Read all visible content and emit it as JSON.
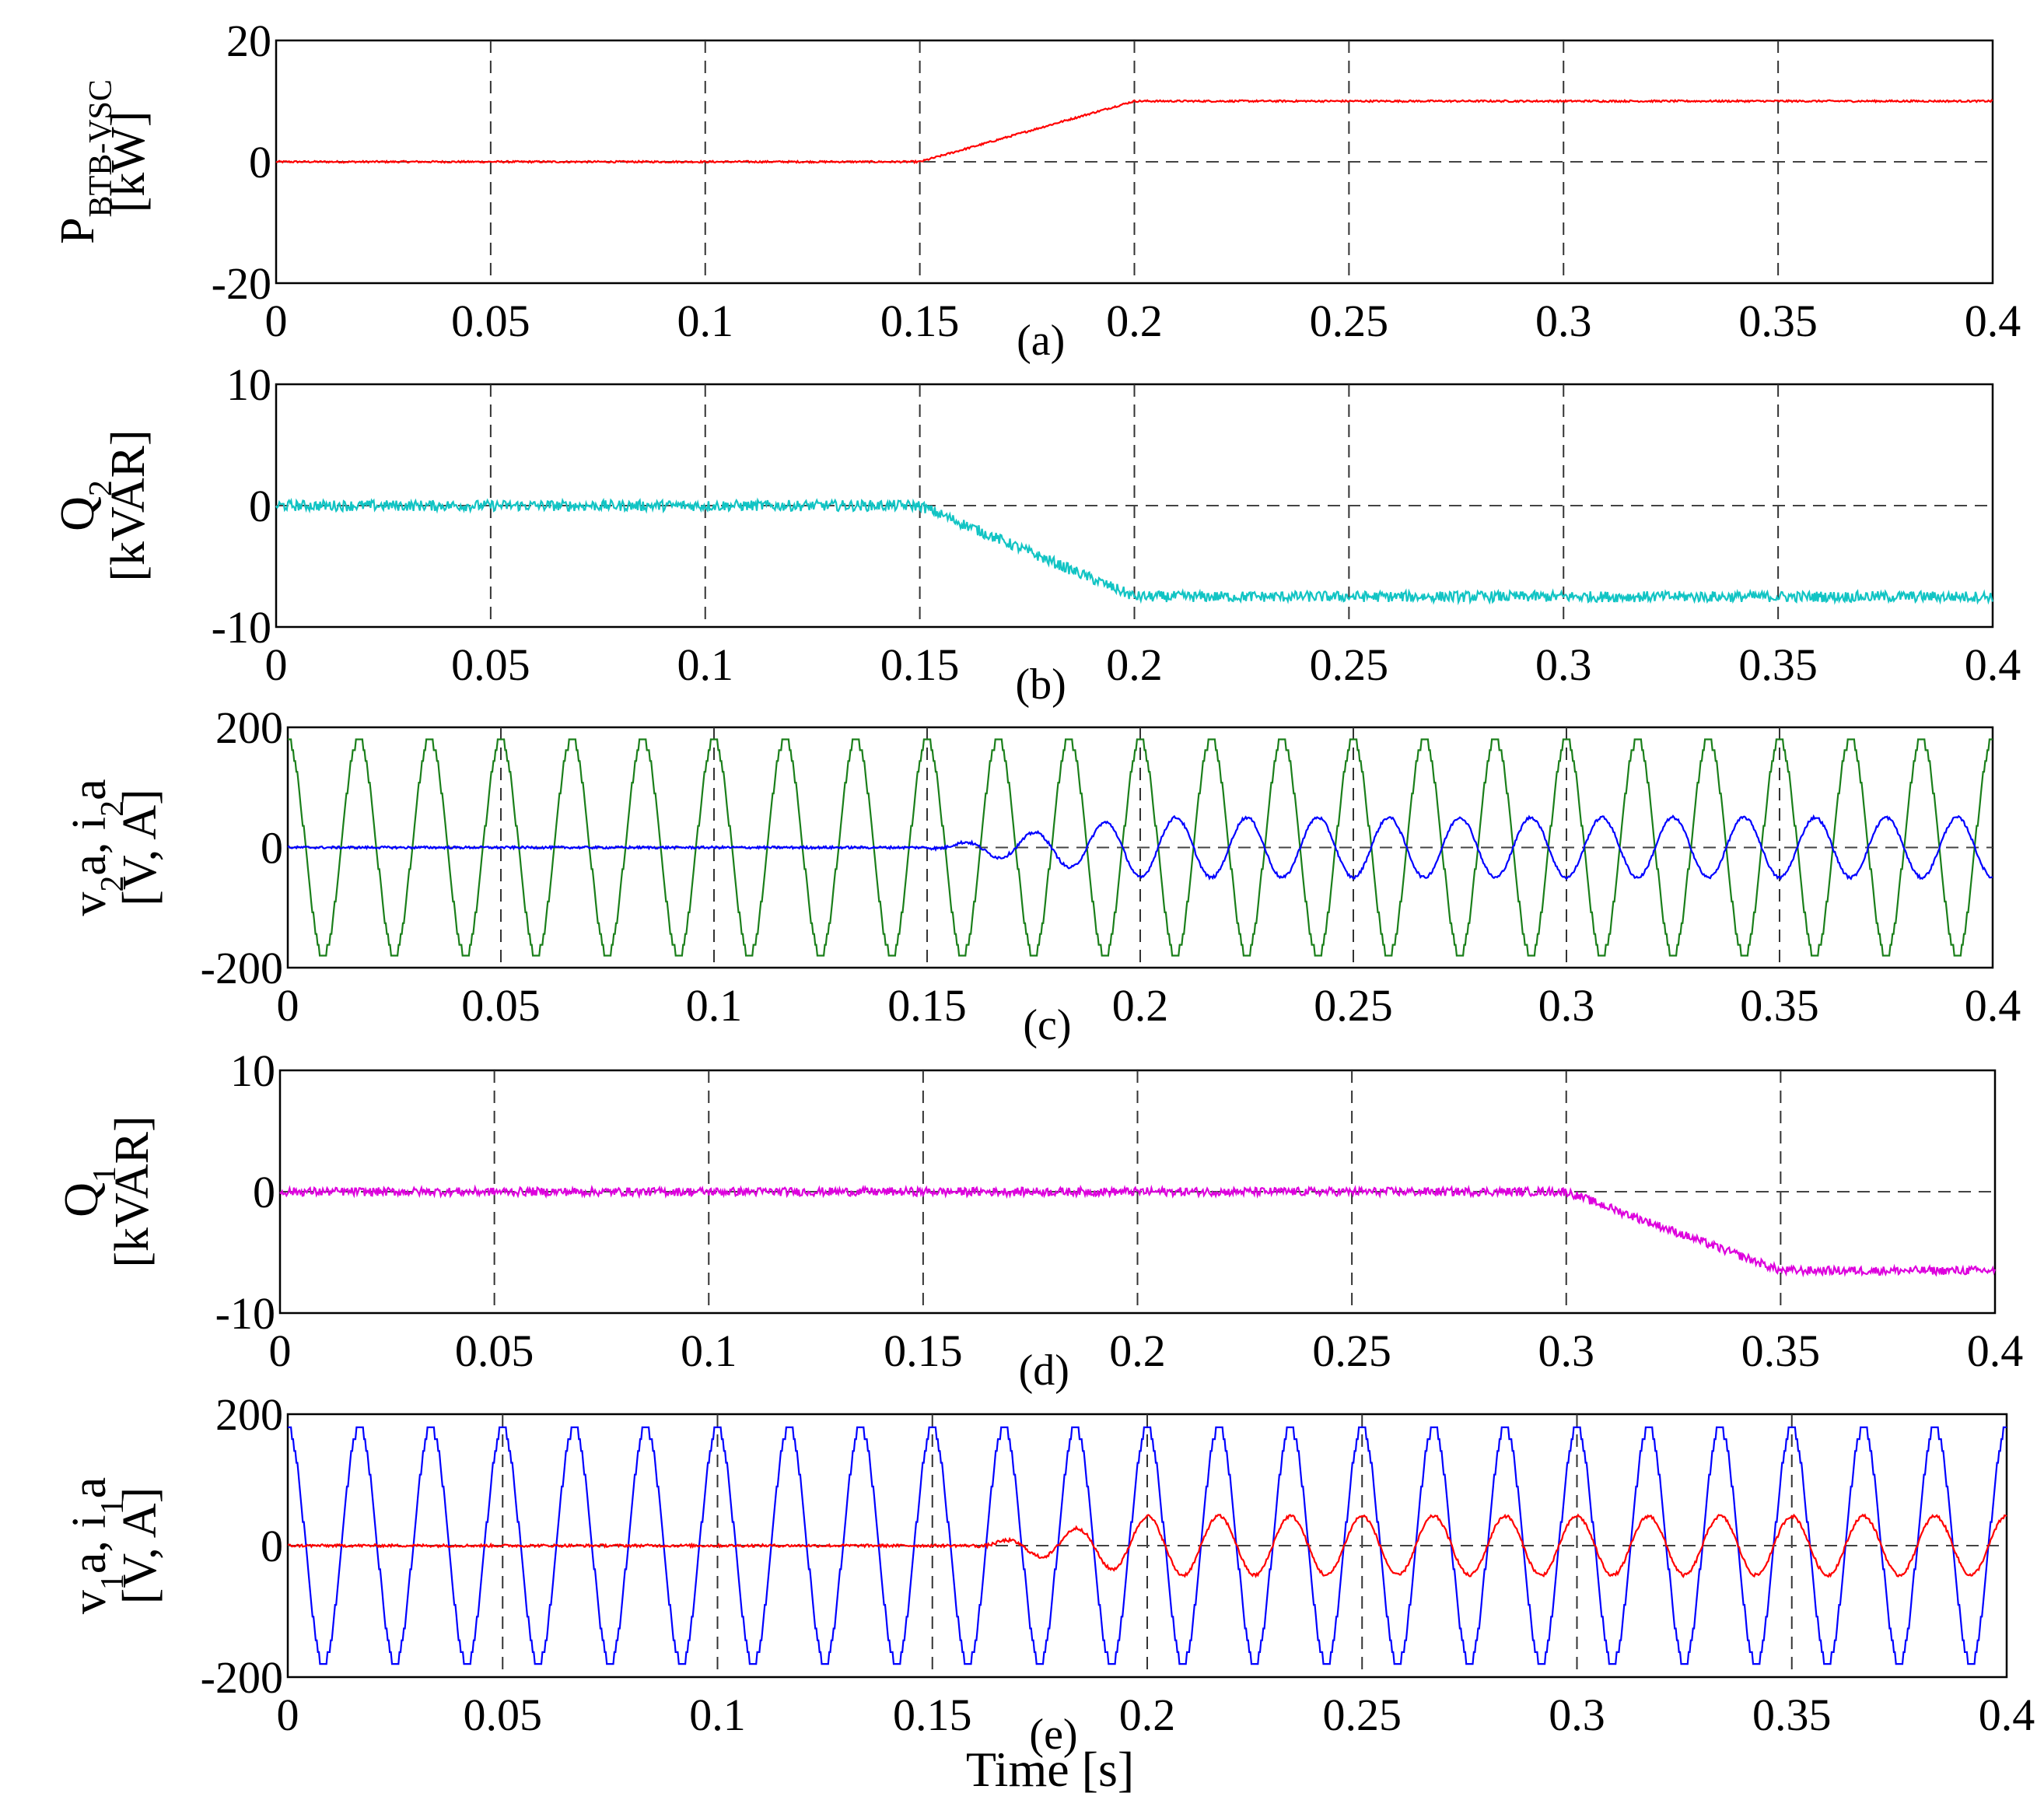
{
  "figure": {
    "xlabel": "Time [s]"
  },
  "colors": {
    "red": "#ff0000",
    "cyan": "#12c4c4",
    "green": "#1a7f1a",
    "blue": "#0000ff",
    "magenta": "#dd00dd",
    "grid": "#555555"
  },
  "chart_data": [
    {
      "id": "a",
      "type": "line",
      "panel_label": "(a)",
      "ylabel_main": "P",
      "ylabel_sub": "BTB-VSC",
      "ylabel_unit": "[kW]",
      "xlim": [
        0,
        0.4
      ],
      "ylim": [
        -20,
        20
      ],
      "xticks": [
        "0",
        "0.05",
        "0.1",
        "0.15",
        "0.2",
        "0.25",
        "0.3",
        "0.35",
        "0.4"
      ],
      "yticks": [
        "20",
        "0",
        "-20"
      ],
      "grid": true,
      "series": [
        {
          "name": "P_BTB-VSC",
          "kind": "ramp",
          "color": "red",
          "x": [
            0,
            0.15,
            0.2,
            0.4
          ],
          "y": [
            0,
            0,
            10,
            10
          ],
          "noise": 0.15
        }
      ]
    },
    {
      "id": "b",
      "type": "line",
      "panel_label": "(b)",
      "ylabel_main": "Q",
      "ylabel_sub": "2",
      "ylabel_unit": "[kVAR]",
      "xlim": [
        0,
        0.4
      ],
      "ylim": [
        -10,
        10
      ],
      "xticks": [
        "0",
        "0.05",
        "0.1",
        "0.15",
        "0.2",
        "0.25",
        "0.3",
        "0.35",
        "0.4"
      ],
      "yticks": [
        "10",
        "0",
        "-10"
      ],
      "grid": true,
      "series": [
        {
          "name": "Q2",
          "kind": "ramp",
          "color": "cyan",
          "x": [
            0,
            0.15,
            0.2,
            0.4
          ],
          "y": [
            0,
            0,
            -7.5,
            -7.5
          ],
          "noise": 0.45
        }
      ]
    },
    {
      "id": "c",
      "type": "line",
      "panel_label": "(c)",
      "ylabel_main": "v",
      "ylabel_sub": "2",
      "ylabel_mid": "a, i",
      "ylabel_sub2": "2",
      "ylabel_end": "a",
      "ylabel_unit": "[V, A]",
      "xlim": [
        0,
        0.4
      ],
      "ylim": [
        -200,
        200
      ],
      "xticks": [
        "0",
        "0.05",
        "0.1",
        "0.15",
        "0.2",
        "0.25",
        "0.3",
        "0.35",
        "0.4"
      ],
      "yticks": [
        "200",
        "0",
        "-200"
      ],
      "grid": true,
      "series": [
        {
          "name": "v2a",
          "kind": "sine",
          "color": "green",
          "amplitude": 180,
          "freq_hz": 60,
          "steps": true
        },
        {
          "name": "i2a",
          "kind": "growing-sine",
          "color": "blue",
          "amplitude": 50,
          "freq_hz": 60,
          "t_start": 0.15,
          "t_full": 0.2,
          "phase_deg": 270
        }
      ]
    },
    {
      "id": "d",
      "type": "line",
      "panel_label": "(d)",
      "ylabel_main": "Q",
      "ylabel_sub": "1",
      "ylabel_unit": "[kVAR]",
      "xlim": [
        0,
        0.4
      ],
      "ylim": [
        -10,
        10
      ],
      "xticks": [
        "0",
        "0.05",
        "0.1",
        "0.15",
        "0.2",
        "0.25",
        "0.3",
        "0.35",
        "0.4"
      ],
      "yticks": [
        "10",
        "0",
        "-10"
      ],
      "grid": true,
      "series": [
        {
          "name": "Q1",
          "kind": "ramp",
          "color": "magenta",
          "x": [
            0,
            0.3,
            0.35,
            0.4
          ],
          "y": [
            0,
            0,
            -6.5,
            -6.5
          ],
          "noise": 0.35
        }
      ]
    },
    {
      "id": "e",
      "type": "line",
      "panel_label": "(e)",
      "ylabel_main": "v",
      "ylabel_sub": "1",
      "ylabel_mid": "a, i",
      "ylabel_sub2": "1",
      "ylabel_end": "a",
      "ylabel_unit": "[V, A]",
      "xlim": [
        0,
        0.4
      ],
      "ylim": [
        -200,
        200
      ],
      "xticks": [
        "0",
        "0.05",
        "0.1",
        "0.15",
        "0.2",
        "0.25",
        "0.3",
        "0.35",
        "0.4"
      ],
      "yticks": [
        "200",
        "0",
        "-200"
      ],
      "grid": true,
      "series": [
        {
          "name": "v1a",
          "kind": "sine",
          "color": "blue",
          "amplitude": 180,
          "freq_hz": 60,
          "steps": true
        },
        {
          "name": "i1a",
          "kind": "growing-sine",
          "color": "red",
          "amplitude": 45,
          "freq_hz": 60,
          "t_start": 0.16,
          "t_full": 0.2,
          "phase_deg": 90
        }
      ]
    }
  ]
}
